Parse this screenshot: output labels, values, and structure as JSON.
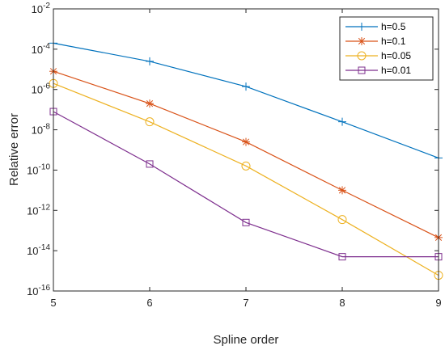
{
  "chart_data": {
    "type": "line",
    "title": "",
    "xlabel": "Spline order",
    "ylabel": "Relative error",
    "xlim": [
      5,
      9
    ],
    "ylim": [
      1e-16,
      0.01
    ],
    "yscale": "log",
    "grid": false,
    "legend_position": "top-right",
    "x": [
      5,
      6,
      7,
      8,
      9
    ],
    "x_tick_labels": [
      "5",
      "6",
      "7",
      "8",
      "9"
    ],
    "y_ticks": [
      {
        "base": "10",
        "exp": "-16"
      },
      {
        "base": "10",
        "exp": "-14"
      },
      {
        "base": "10",
        "exp": "-12"
      },
      {
        "base": "10",
        "exp": "-10"
      },
      {
        "base": "10",
        "exp": "-8"
      },
      {
        "base": "10",
        "exp": "-6"
      },
      {
        "base": "10",
        "exp": "-4"
      },
      {
        "base": "10",
        "exp": "-2"
      }
    ],
    "series": [
      {
        "name": "h=0.5",
        "color": "#0072BD",
        "marker": "plus",
        "values": [
          0.0002,
          2.5e-05,
          1.4e-06,
          2.5e-08,
          4e-10
        ]
      },
      {
        "name": "h=0.1",
        "color": "#D95319",
        "marker": "asterisk",
        "values": [
          8e-06,
          2e-07,
          2.5e-09,
          1e-11,
          4.5e-14
        ]
      },
      {
        "name": "h=0.05",
        "color": "#EDB120",
        "marker": "circle",
        "values": [
          2e-06,
          2.5e-08,
          1.6e-10,
          3.5e-13,
          6e-16
        ]
      },
      {
        "name": "h=0.01",
        "color": "#7E2F8E",
        "marker": "square",
        "values": [
          8e-08,
          2e-10,
          2.5e-13,
          5e-15,
          5e-15
        ]
      }
    ]
  }
}
